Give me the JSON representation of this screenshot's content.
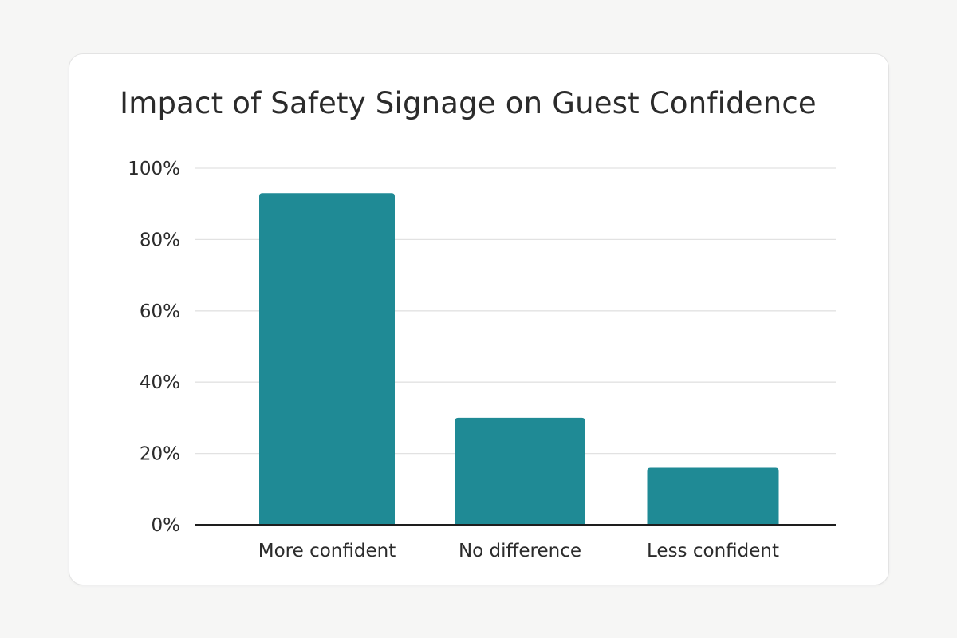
{
  "chart_data": {
    "type": "bar",
    "title": "Impact of Safety Signage on Guest Confidence",
    "categories": [
      "More confident",
      "No difference",
      "Less confident"
    ],
    "values": [
      93,
      30,
      16
    ],
    "xlabel": "",
    "ylabel": "",
    "ylim": [
      0,
      100
    ],
    "yticks": [
      0,
      20,
      40,
      60,
      80,
      100
    ],
    "ytick_labels": [
      "0%",
      "20%",
      "40%",
      "60%",
      "80%",
      "100%"
    ],
    "grid": true,
    "bar_color": "#1f8a95",
    "grid_color": "#e2e2e2",
    "axis_color": "#1e1e1e"
  }
}
